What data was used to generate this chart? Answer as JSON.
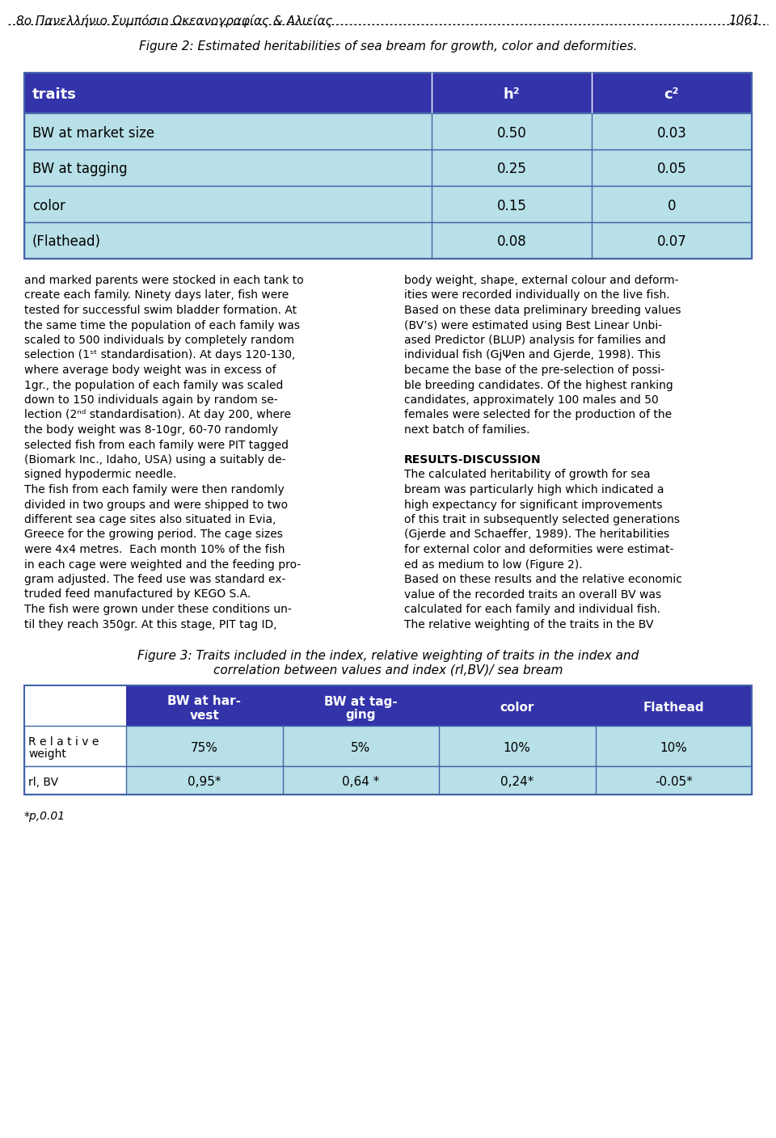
{
  "page_title": "8o Πανελλήνιο Συμπόσιο Ωκεανογραφίας & Αλιείας",
  "page_number": "1061",
  "fig2_caption": "Figure 2: Estimated heritabilities of sea bream for growth, color and deformities.",
  "table1_header": [
    "traits",
    "h²",
    "c²"
  ],
  "table1_rows": [
    [
      "BW at market size",
      "0.50",
      "0.03"
    ],
    [
      "BW at tagging",
      "0.25",
      "0.05"
    ],
    [
      "color",
      "0.15",
      "0"
    ],
    [
      "(Flathead)",
      "0.08",
      "0.07"
    ]
  ],
  "header_bg": "#3333aa",
  "header_text_color": "#ffffff",
  "row_bg": "#b8e0e8",
  "row_text_color": "#000000",
  "border_color": "#4466aa",
  "left_col_text": [
    "and marked parents were stocked in each tank to",
    "create each family. Ninety days later, fish were",
    "tested for successful swim bladder formation. At",
    "the same time the population of each family was",
    "scaled to 500 individuals by completely random",
    "selection (1ˢᵗ standardisation). At days 120-130,",
    "where average body weight was in excess of",
    "1gr., the population of each family was scaled",
    "down to 150 individuals again by random se-",
    "lection (2ⁿᵈ standardisation). At day 200, where",
    "the body weight was 8-10gr, 60-70 randomly",
    "selected fish from each family were PIT tagged",
    "(Biomark Inc., Idaho, USA) using a suitably de-",
    "signed hypodermic needle.",
    "The fish from each family were then randomly",
    "divided in two groups and were shipped to two",
    "different sea cage sites also situated in Evia,",
    "Greece for the growing period. The cage sizes",
    "were 4x4 metres.  Each month 10% of the fish",
    "in each cage were weighted and the feeding pro-",
    "gram adjusted. The feed use was standard ex-",
    "truded feed manufactured by KEGO S.A.",
    "The fish were grown under these conditions un-",
    "til they reach 350gr. At this stage, PIT tag ID,"
  ],
  "right_col_text": [
    "body weight, shape, external colour and deform-",
    "ities were recorded individually on the live fish.",
    "Based on these data preliminary breeding values",
    "(BV’s) were estimated using Best Linear Unbi-",
    "ased Predictor (BLUP) analysis for families and",
    "individual fish (GjΨen and Gjerde, 1998). This",
    "became the base of the pre-selection of possi-",
    "ble breeding candidates. Of the highest ranking",
    "candidates, approximately 100 males and 50",
    "females were selected for the production of the",
    "next batch of families.",
    "",
    "RESULTS-DISCUSSION",
    "The calculated heritability of growth for sea",
    "bream was particularly high which indicated a",
    "high expectancy for significant improvements",
    "of this trait in subsequently selected generations",
    "(Gjerde and Schaeffer, 1989). The heritabilities",
    "for external color and deformities were estimat-",
    "ed as medium to low (Figure 2).",
    "Based on these results and the relative economic",
    "value of the recorded traits an overall BV was",
    "calculated for each family and individual fish.",
    "The relative weighting of the traits in the BV"
  ],
  "fig3_caption_line1": "Figure 3: Traits included in the index, relative weighting of traits in the index and",
  "fig3_caption_line2": "correlation between values and index (rI,BV)/ sea bream",
  "table2_col_headers": [
    "",
    "BW at har-\nvest",
    "BW at tag-\nging",
    "color",
    "Flathead"
  ],
  "table2_rows": [
    [
      "R e l a t i v e\nweight",
      "75%",
      "5%",
      "10%",
      "10%"
    ],
    [
      "rl, BV",
      "0,95*",
      "0,64 *",
      "0,24*",
      "-0.05*"
    ]
  ],
  "footnote": "*p,0.01",
  "results_bold": "RESULTS-DISCUSSION"
}
